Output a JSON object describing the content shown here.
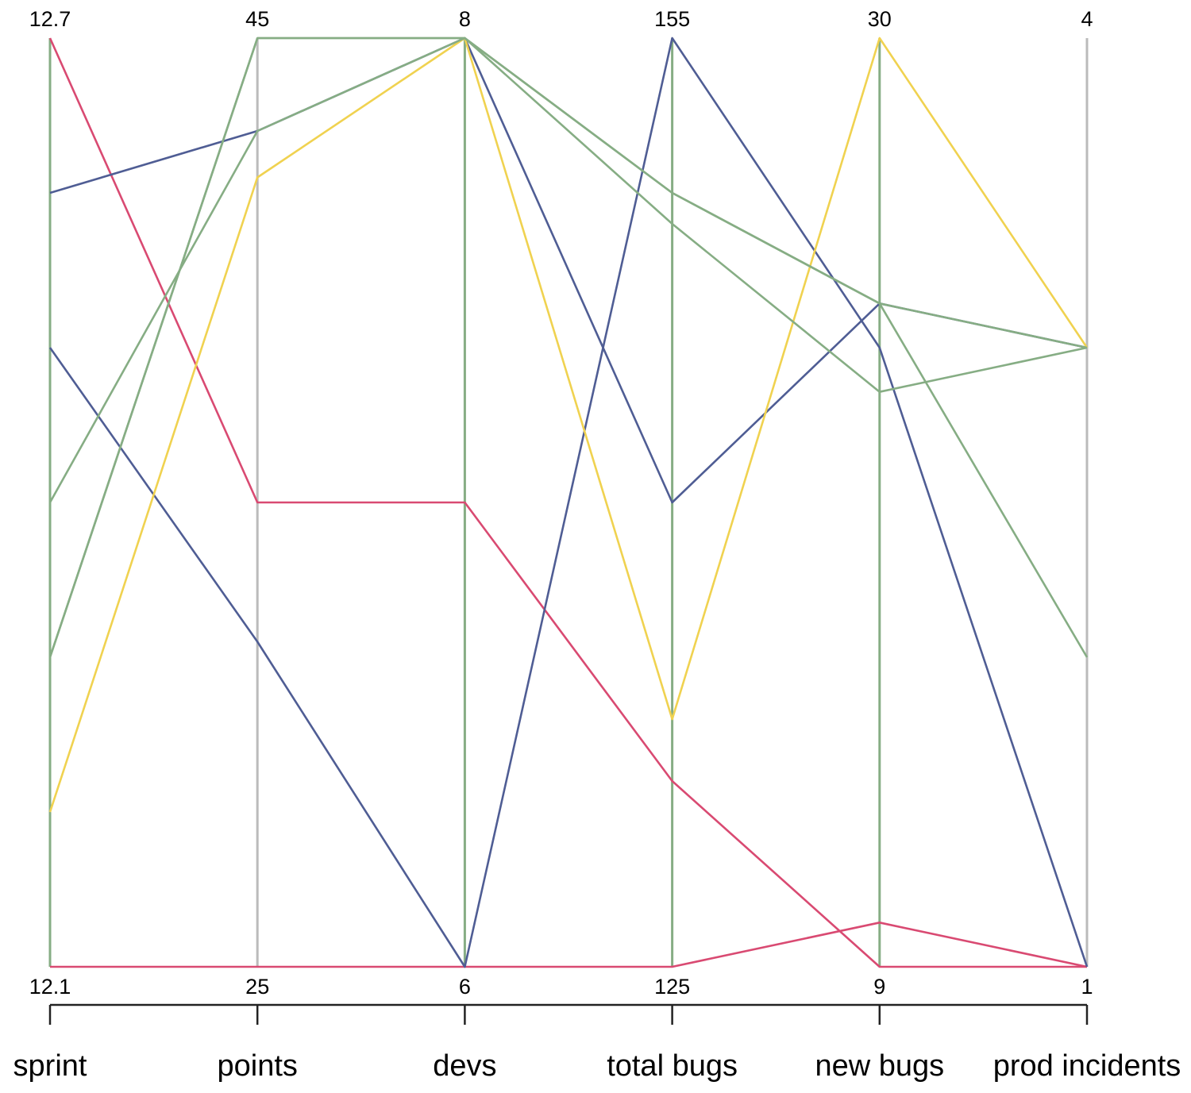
{
  "chart_data": {
    "type": "parallel-coordinates",
    "axes": [
      {
        "name": "sprint",
        "min": 12.1,
        "max": 12.7,
        "min_label": "12.1",
        "max_label": "12.7"
      },
      {
        "name": "points",
        "min": 25,
        "max": 45,
        "min_label": "25",
        "max_label": "45"
      },
      {
        "name": "devs",
        "min": 6,
        "max": 8,
        "min_label": "6",
        "max_label": "8"
      },
      {
        "name": "total bugs",
        "min": 125,
        "max": 155,
        "min_label": "125",
        "max_label": "155"
      },
      {
        "name": "new bugs",
        "min": 9,
        "max": 30,
        "min_label": "9",
        "max_label": "30"
      },
      {
        "name": "prod incidents",
        "min": 1,
        "max": 4,
        "min_label": "1",
        "max_label": "4"
      }
    ],
    "lines": [
      {
        "color": "#d94a72",
        "values": [
          12.7,
          35,
          7,
          131,
          9,
          1
        ]
      },
      {
        "color": "#d94a72",
        "values": [
          12.1,
          25,
          6,
          125,
          10,
          1
        ]
      },
      {
        "color": "#4f5d94",
        "values": [
          12.6,
          43,
          8,
          140,
          24,
          3
        ]
      },
      {
        "color": "#4f5d94",
        "values": [
          12.5,
          32,
          6,
          155,
          23,
          1
        ]
      },
      {
        "color": "#f0d250",
        "values": [
          12.2,
          42,
          8,
          133,
          30,
          3
        ]
      },
      {
        "color": "#86ad84",
        "values": [
          12.4,
          43,
          8,
          149,
          22,
          3
        ]
      },
      {
        "color": "#86ad84",
        "values": [
          12.3,
          45,
          8,
          150,
          24,
          3
        ]
      },
      {
        "color": "#86ad84",
        "values": [
          12.3,
          45,
          8,
          150,
          24,
          2
        ]
      }
    ],
    "axis_line_colors": [
      "#86ad84",
      "#bbbbbb",
      "#86ad84",
      "#86ad84",
      "#86ad84",
      "#bbbbbb"
    ],
    "bottom_scale_color": "#222222",
    "grid": false,
    "legend": "none"
  }
}
